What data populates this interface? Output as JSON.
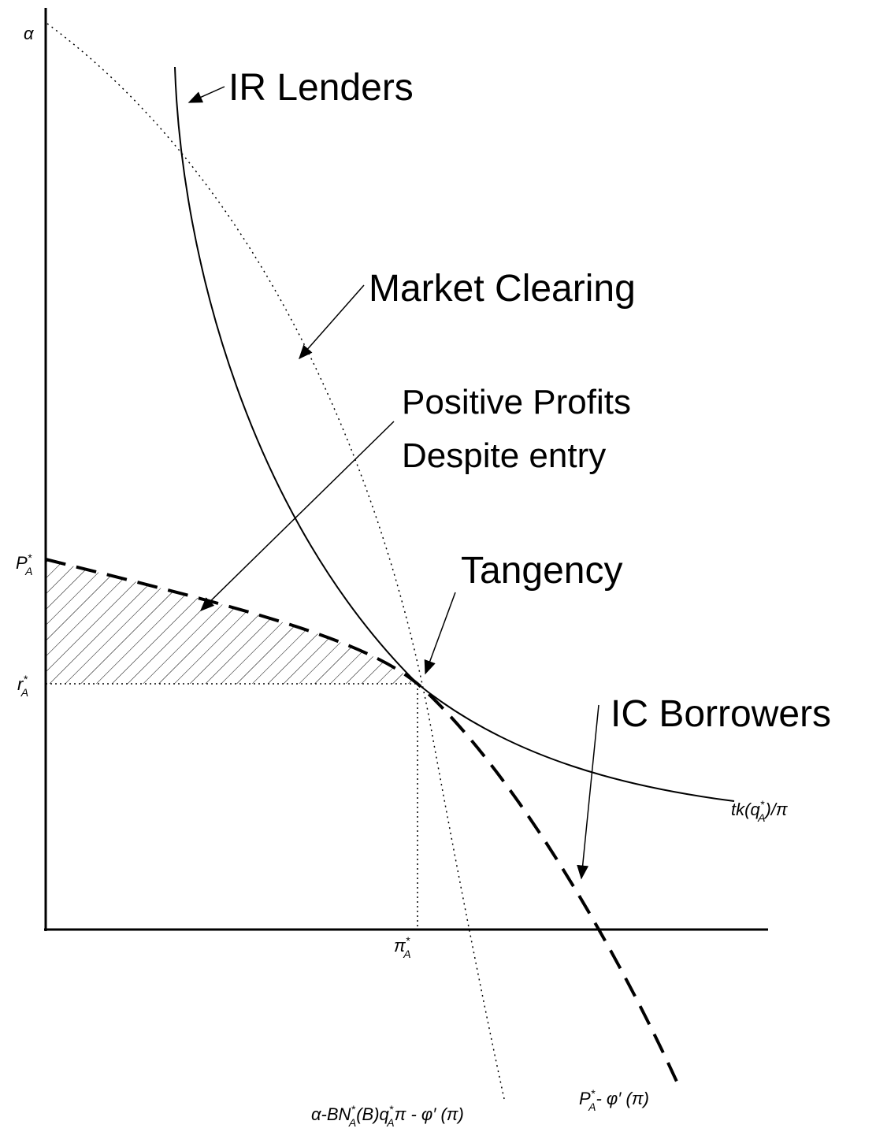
{
  "labels": {
    "alpha": [
      {
        "text": "α"
      }
    ],
    "p_star": [
      {
        "text": "P"
      },
      {
        "text": "*",
        "pos": "sup"
      },
      {
        "text": "A",
        "pos": "sub"
      }
    ],
    "r_star": [
      {
        "text": "r"
      },
      {
        "text": "*",
        "pos": "sup"
      },
      {
        "text": "A",
        "pos": "sub"
      }
    ],
    "pi_star": [
      {
        "text": "π"
      },
      {
        "text": "*",
        "pos": "sup"
      },
      {
        "text": "A",
        "pos": "sub"
      }
    ],
    "curve_ir": [
      {
        "text": "tk(q"
      },
      {
        "text": "*",
        "pos": "sup"
      },
      {
        "text": "A",
        "pos": "sub"
      },
      {
        "text": ")/π"
      }
    ],
    "curve_mc": [
      {
        "text": "α-BN"
      },
      {
        "text": "*",
        "pos": "sup"
      },
      {
        "text": "A",
        "pos": "sub"
      },
      {
        "text": "(B)q"
      },
      {
        "text": "*",
        "pos": "sup"
      },
      {
        "text": "A",
        "pos": "sub"
      },
      {
        "text": "π - φ′ (π)"
      }
    ],
    "curve_ic": [
      {
        "text": "P"
      },
      {
        "text": "*",
        "pos": "sup"
      },
      {
        "text": "A",
        "pos": "sub"
      },
      {
        "text": "- φ′ (π)"
      }
    ]
  },
  "annotations": {
    "ir_lenders": "IR Lenders",
    "market_clearing": "Market Clearing",
    "positive_profits": [
      "Positive Profits",
      "Despite entry"
    ],
    "tangency": "Tangency",
    "ic_borrowers": "IC Borrowers"
  }
}
